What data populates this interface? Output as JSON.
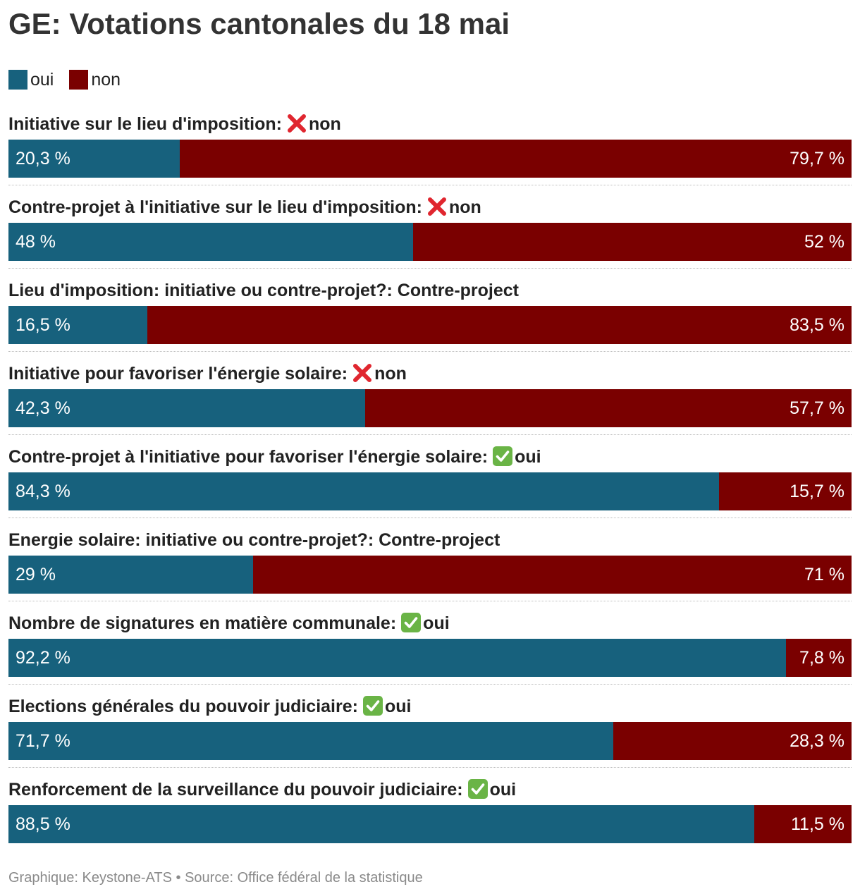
{
  "colors": {
    "oui": "#17617d",
    "non": "#7a0000"
  },
  "title": "GE: Votations cantonales du 18 mai",
  "legend": [
    {
      "key": "oui",
      "label": "oui"
    },
    {
      "key": "non",
      "label": "non"
    }
  ],
  "footer": "Graphique: Keystone-ATS • Source: Office fédéral de la statistique",
  "chart_data": {
    "type": "bar",
    "orientation": "horizontal",
    "stacked": true,
    "normalized": true,
    "title": "GE: Votations cantonales du 18 mai",
    "xlim": [
      0,
      100
    ],
    "series": [
      {
        "name": "oui",
        "values": [
          20.3,
          48,
          16.5,
          42.3,
          84.3,
          29,
          92.2,
          71.7,
          88.5
        ]
      },
      {
        "name": "non",
        "values": [
          79.7,
          52,
          83.5,
          57.7,
          15.7,
          71,
          7.8,
          28.3,
          11.5
        ]
      }
    ],
    "items": [
      {
        "label": "Initiative sur le lieu d'imposition:",
        "result_icon": "cross-mark-icon",
        "result": "non",
        "oui": 20.3,
        "non": 79.7,
        "oui_label": "20,3 %",
        "non_label": "79,7 %"
      },
      {
        "label": "Contre-projet à l'initiative sur le lieu d'imposition:",
        "result_icon": "cross-mark-icon",
        "result": "non",
        "oui": 48,
        "non": 52,
        "oui_label": "48 %",
        "non_label": "52 %"
      },
      {
        "label": "Lieu d'imposition: initiative ou contre-projet?: Contre-project",
        "result_icon": "",
        "result": "",
        "oui": 16.5,
        "non": 83.5,
        "oui_label": "16,5 %",
        "non_label": "83,5 %"
      },
      {
        "label": "Initiative pour favoriser l'énergie solaire:",
        "result_icon": "cross-mark-icon",
        "result": "non",
        "oui": 42.3,
        "non": 57.7,
        "oui_label": "42,3 %",
        "non_label": "57,7 %"
      },
      {
        "label": "Contre-projet à l'initiative pour favoriser l'énergie solaire:",
        "result_icon": "check-mark-icon",
        "result": "oui",
        "oui": 84.3,
        "non": 15.7,
        "oui_label": "84,3 %",
        "non_label": "15,7 %"
      },
      {
        "label": "Energie solaire: initiative ou contre-projet?: Contre-project",
        "result_icon": "",
        "result": "",
        "oui": 29,
        "non": 71,
        "oui_label": "29 %",
        "non_label": "71 %"
      },
      {
        "label": "Nombre de signatures en matière communale:",
        "result_icon": "check-mark-icon",
        "result": "oui",
        "oui": 92.2,
        "non": 7.8,
        "oui_label": "92,2 %",
        "non_label": "7,8 %"
      },
      {
        "label": "Elections générales du pouvoir judiciaire:",
        "result_icon": "check-mark-icon",
        "result": "oui",
        "oui": 71.7,
        "non": 28.3,
        "oui_label": "71,7 %",
        "non_label": "28,3 %"
      },
      {
        "label": "Renforcement de la surveillance du pouvoir judiciaire:",
        "result_icon": "check-mark-icon",
        "result": "oui",
        "oui": 88.5,
        "non": 11.5,
        "oui_label": "88,5 %",
        "non_label": "11,5 %"
      }
    ]
  }
}
